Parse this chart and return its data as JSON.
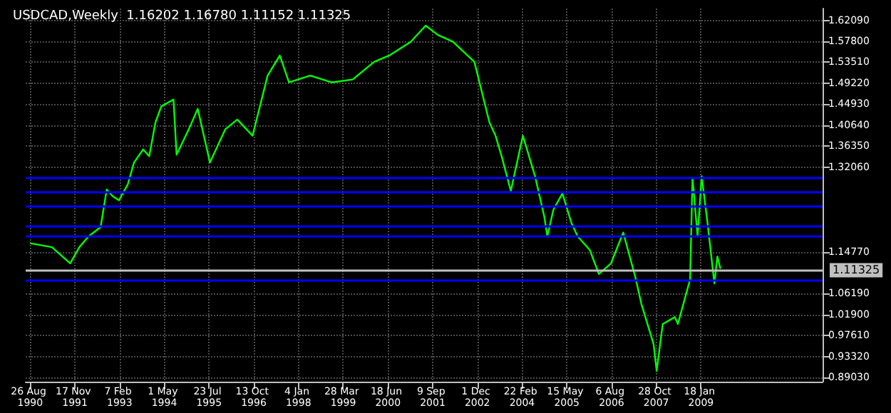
{
  "chart_data": {
    "type": "line",
    "title": "USDCAD,Weekly  1.16202 1.16780 1.11152 1.11325",
    "x": [
      "1990-08-26",
      "1991-04",
      "1991-10",
      "1992-01",
      "1992-04",
      "1992-08",
      "1992-10",
      "1992-12",
      "1993-02",
      "1993-05",
      "1993-07",
      "1993-10",
      "1993-12",
      "1994-02",
      "1994-04",
      "1994-08",
      "1994-09",
      "1995-01",
      "1995-04",
      "1995-08",
      "1996-01",
      "1996-05",
      "1996-10",
      "1997-03",
      "1997-07",
      "1997-10",
      "1998-05",
      "1998-12",
      "1999-07",
      "2000-02",
      "2000-07",
      "2001-02",
      "2001-07",
      "2001-11",
      "2002-04",
      "2002-11",
      "2003-04",
      "2003-06",
      "2003-08",
      "2003-11",
      "2004-03",
      "2004-07",
      "2004-10",
      "2004-11",
      "2005-01",
      "2005-04",
      "2005-07",
      "2005-09",
      "2006-01",
      "2006-04",
      "2006-08",
      "2006-12",
      "2007-04",
      "2007-06",
      "2007-10",
      "2007-11",
      "2008-01",
      "2008-05",
      "2008-06",
      "2008-09",
      "2008-10-01",
      "2008-10-25",
      "2008-12-15",
      "2009-01-25",
      "2009-03-25",
      "2009-06",
      "2009-07",
      "2009-08"
    ],
    "series": [
      {
        "color": "#00ff00",
        "values": [
          1.165,
          1.157,
          1.124,
          1.157,
          1.179,
          1.198,
          1.275,
          1.261,
          1.253,
          1.286,
          1.33,
          1.357,
          1.343,
          1.412,
          1.445,
          1.459,
          1.346,
          1.398,
          1.44,
          1.33,
          1.398,
          1.418,
          1.385,
          1.508,
          1.549,
          1.494,
          1.508,
          1.494,
          1.5,
          1.536,
          1.549,
          1.577,
          1.61,
          1.591,
          1.577,
          1.536,
          1.412,
          1.385,
          1.343,
          1.272,
          1.385,
          1.302,
          1.22,
          1.179,
          1.234,
          1.267,
          1.206,
          1.179,
          1.151,
          1.102,
          1.124,
          1.187,
          1.096,
          1.041,
          0.959,
          0.904,
          1.0,
          1.014,
          1.0,
          1.069,
          1.091,
          1.299,
          1.179,
          1.302,
          1.206,
          1.083,
          1.138,
          1.113
        ]
      }
    ],
    "xlim": [
      "1990-07-12",
      "2012-05-20"
    ],
    "xticks": [
      {
        "value": "1990-08-26",
        "label": "26 Aug 1990"
      },
      {
        "value": "1991-11-17",
        "label": "17 Nov 1991"
      },
      {
        "value": "1993-02-07",
        "label": "7 Feb 1993"
      },
      {
        "value": "1994-05-01",
        "label": "1 May 1994"
      },
      {
        "value": "1995-07-23",
        "label": "23 Jul 1995"
      },
      {
        "value": "1996-10-13",
        "label": "13 Oct 1996"
      },
      {
        "value": "1998-01-04",
        "label": "4 Jan 1998"
      },
      {
        "value": "1999-03-28",
        "label": "28 Mar 1999"
      },
      {
        "value": "2000-06-18",
        "label": "18 Jun 2000"
      },
      {
        "value": "2001-09-09",
        "label": "9 Sep 2001"
      },
      {
        "value": "2002-12-01",
        "label": "1 Dec 2002"
      },
      {
        "value": "2004-02-22",
        "label": "22 Feb 2004"
      },
      {
        "value": "2005-05-15",
        "label": "15 May 2005"
      },
      {
        "value": "2006-08-06",
        "label": "6 Aug 2006"
      },
      {
        "value": "2007-10-28",
        "label": "28 Oct 2007"
      },
      {
        "value": "2009-01-18",
        "label": "18 Jan 2009"
      }
    ],
    "ylim": [
      0.882,
      1.645
    ],
    "yticks": [
      {
        "value": 0.8903,
        "label": "0.89030"
      },
      {
        "value": 0.9332,
        "label": "0.93320"
      },
      {
        "value": 0.9761,
        "label": "0.97610"
      },
      {
        "value": 1.019,
        "label": "1.01900"
      },
      {
        "value": 1.0619,
        "label": "1.06190"
      },
      {
        "value": 1.1477,
        "label": "1.14770"
      },
      {
        "value": 1.3206,
        "label": "1.32060"
      },
      {
        "value": 1.3635,
        "label": "1.36350"
      },
      {
        "value": 1.4064,
        "label": "1.40640"
      },
      {
        "value": 1.4493,
        "label": "1.44930"
      },
      {
        "value": 1.4922,
        "label": "1.49220"
      },
      {
        "value": 1.5351,
        "label": "1.53510"
      },
      {
        "value": 1.578,
        "label": "1.57800"
      },
      {
        "value": 1.6209,
        "label": "1.62090"
      }
    ],
    "ref_lines": [
      {
        "axis": "y",
        "value": 1.298,
        "color": "#0000ff"
      },
      {
        "axis": "y",
        "value": 1.269,
        "color": "#0000ff"
      },
      {
        "axis": "y",
        "value": 1.239,
        "color": "#0000ff"
      },
      {
        "axis": "y",
        "value": 1.199,
        "color": "#0000ff"
      },
      {
        "axis": "y",
        "value": 1.179,
        "color": "#0000ff"
      },
      {
        "axis": "y",
        "value": 1.09,
        "color": "#0000ff"
      },
      {
        "axis": "y",
        "value": 1.11325,
        "label": "1.11325",
        "color": "#c0c0c0"
      }
    ],
    "grid": true
  }
}
